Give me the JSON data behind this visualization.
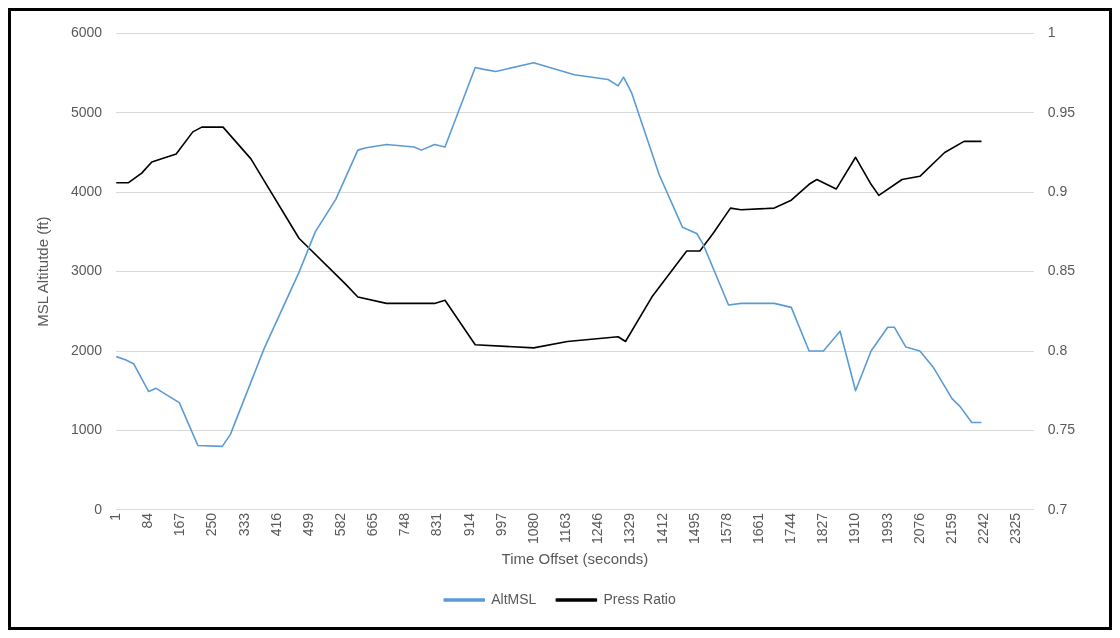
{
  "chart_data": {
    "type": "line",
    "xlabel": "Time Offset (seconds)",
    "ylabel": "MSL Altitutde (ft)",
    "xlim": [
      1,
      2370
    ],
    "xticks": [
      1,
      84,
      167,
      250,
      333,
      416,
      499,
      582,
      665,
      748,
      831,
      914,
      997,
      1080,
      1163,
      1246,
      1329,
      1412,
      1495,
      1578,
      1661,
      1744,
      1827,
      1910,
      1993,
      2076,
      2159,
      2242,
      2325
    ],
    "ylim": [
      0,
      6000
    ],
    "yticks": [
      0,
      1000,
      2000,
      3000,
      4000,
      5000,
      6000
    ],
    "y2lim": [
      0.7,
      1
    ],
    "y2ticks": [
      0.7,
      0.75,
      0.8,
      0.85,
      0.9,
      0.95,
      1
    ],
    "grid": "y",
    "legend": "bottom",
    "marker": "none",
    "line_style": "solid",
    "series": [
      {
        "name": "AltMSL",
        "color": "#5b9bd5",
        "x": [
          1,
          25,
          46,
          85,
          104,
          164,
          212,
          275,
          296,
          383,
          473,
          515,
          568,
          625,
          647,
          699,
          770,
          789,
          823,
          850,
          928,
          947,
          981,
          1079,
          1184,
          1271,
          1297,
          1311,
          1332,
          1403,
          1463,
          1500,
          1516,
          1582,
          1614,
          1700,
          1744,
          1790,
          1827,
          1870,
          1910,
          1950,
          1993,
          2010,
          2040,
          2076,
          2110,
          2159,
          2180,
          2210,
          2235
        ],
        "values": [
          1930,
          1890,
          1840,
          1490,
          1530,
          1350,
          810,
          800,
          950,
          2030,
          2990,
          3500,
          3910,
          4530,
          4560,
          4600,
          4570,
          4530,
          4600,
          4570,
          5570,
          5550,
          5520,
          5630,
          5480,
          5420,
          5340,
          5450,
          5250,
          4220,
          3560,
          3480,
          3350,
          2580,
          2600,
          2600,
          2550,
          2000,
          2000,
          2250,
          1500,
          2000,
          2300,
          2300,
          2050,
          2000,
          1800,
          1400,
          1300,
          1100,
          1100
        ]
      },
      {
        "name": "Press Ratio",
        "color": "#000000",
        "axis": "y2",
        "x": [
          1,
          33,
          67,
          93,
          156,
          199,
          222,
          277,
          349,
          473,
          594,
          625,
          699,
          823,
          850,
          928,
          1079,
          1166,
          1297,
          1316,
          1384,
          1474,
          1508,
          1542,
          1587,
          1614,
          1700,
          1744,
          1790,
          1810,
          1860,
          1910,
          1950,
          1970,
          2030,
          2076,
          2140,
          2190,
          2235
        ],
        "values": [
          0.906,
          0.906,
          0.912,
          0.919,
          0.924,
          0.938,
          0.941,
          0.941,
          0.921,
          0.871,
          0.842,
          0.834,
          0.83,
          0.83,
          0.832,
          0.804,
          0.802,
          0.806,
          0.809,
          0.806,
          0.834,
          0.863,
          0.863,
          0.874,
          0.89,
          0.889,
          0.89,
          0.895,
          0.905,
          0.908,
          0.902,
          0.922,
          0.905,
          0.898,
          0.908,
          0.91,
          0.925,
          0.932,
          0.932
        ]
      }
    ]
  }
}
